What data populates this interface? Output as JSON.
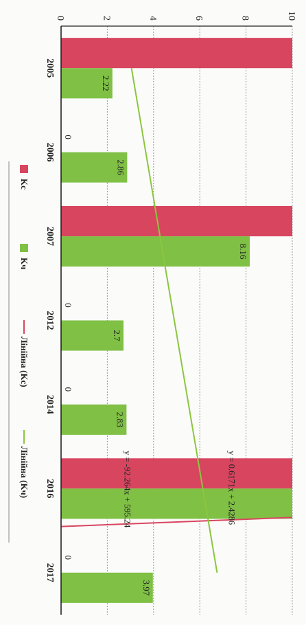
{
  "chart_data": {
    "type": "bar",
    "orientation": "vertical-bars-rotated-90deg",
    "categories": [
      "2005",
      "2006",
      "2007",
      "2012",
      "2014",
      "2016",
      "2017"
    ],
    "ylim": [
      0,
      10
    ],
    "yticks": [
      "0",
      "2",
      "4",
      "6",
      "8",
      "10"
    ],
    "grid": true,
    "legend_position": "right",
    "series": [
      {
        "name": "Kc",
        "color": "#d8455f",
        "values": [
          10,
          0,
          10,
          0,
          0,
          10,
          0
        ]
      },
      {
        "name": "Kч",
        "color": "#7fc045",
        "values": [
          2.22,
          2.86,
          8.16,
          2.7,
          2.83,
          10,
          3.97
        ]
      }
    ],
    "data_labels": {
      "Kc": [
        "",
        "0",
        "",
        "0",
        "0",
        "",
        "0"
      ],
      "Kч": [
        "2.22",
        "2.86",
        "8.16",
        "2.7",
        "2.83",
        "",
        "3.97"
      ]
    },
    "trendlines": [
      {
        "name": "Лінійна (Kc)",
        "color": "#d8455f",
        "slope": -92.264,
        "intercept": 595.24,
        "equation": "y = -92.264x + 595.24"
      },
      {
        "name": "Лінійна (Kч)",
        "color": "#8bc63f",
        "slope": 0.6171,
        "intercept": 2.4286,
        "equation": "y = 0.6171x + 2.4286"
      }
    ]
  }
}
